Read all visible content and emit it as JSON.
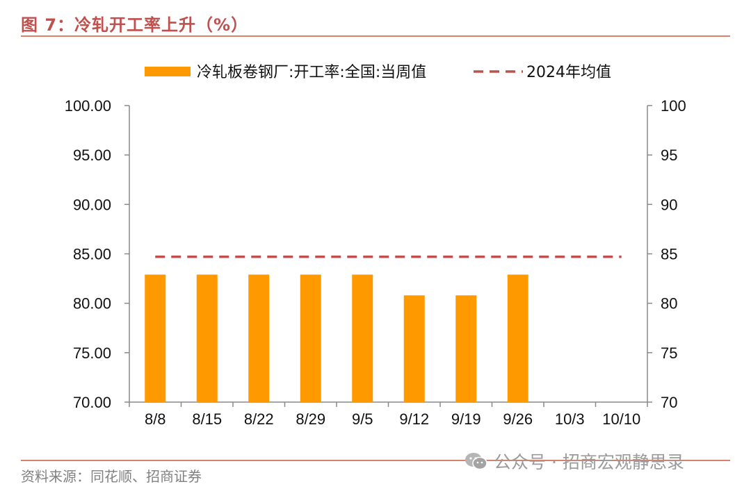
{
  "figure_title": "图 7：冷轧开工率上升（%）",
  "source": "资料来源：同花顺、招商证券",
  "watermark": "公众号 · 招商宏观静思录",
  "chart_data": {
    "type": "bar",
    "categories": [
      "8/8",
      "8/15",
      "8/22",
      "8/29",
      "9/5",
      "9/12",
      "9/19",
      "9/26",
      "10/3",
      "10/10"
    ],
    "series": [
      {
        "name": "冷轧板卷钢厂:开工率:全国:当周值",
        "type": "bar",
        "axis": "left",
        "color": "#ff9900",
        "values": [
          82.9,
          82.9,
          82.9,
          82.9,
          82.9,
          80.8,
          80.8,
          82.9,
          null,
          null
        ]
      },
      {
        "name": "2024年均值",
        "type": "line",
        "style": "dashed",
        "axis": "left",
        "color": "#c0504d",
        "values": [
          84.7,
          84.7,
          84.7,
          84.7,
          84.7,
          84.7,
          84.7,
          84.7,
          84.7,
          84.7
        ]
      }
    ],
    "y_left": {
      "ylim": [
        70,
        100
      ],
      "ticks": [
        "70.00",
        "75.00",
        "80.00",
        "85.00",
        "90.00",
        "95.00",
        "100.00"
      ]
    },
    "y_right": {
      "ylim": [
        70,
        100
      ],
      "ticks": [
        "70",
        "75",
        "80",
        "85",
        "90",
        "95",
        "100"
      ]
    },
    "legend_position": "top",
    "grid": false
  }
}
